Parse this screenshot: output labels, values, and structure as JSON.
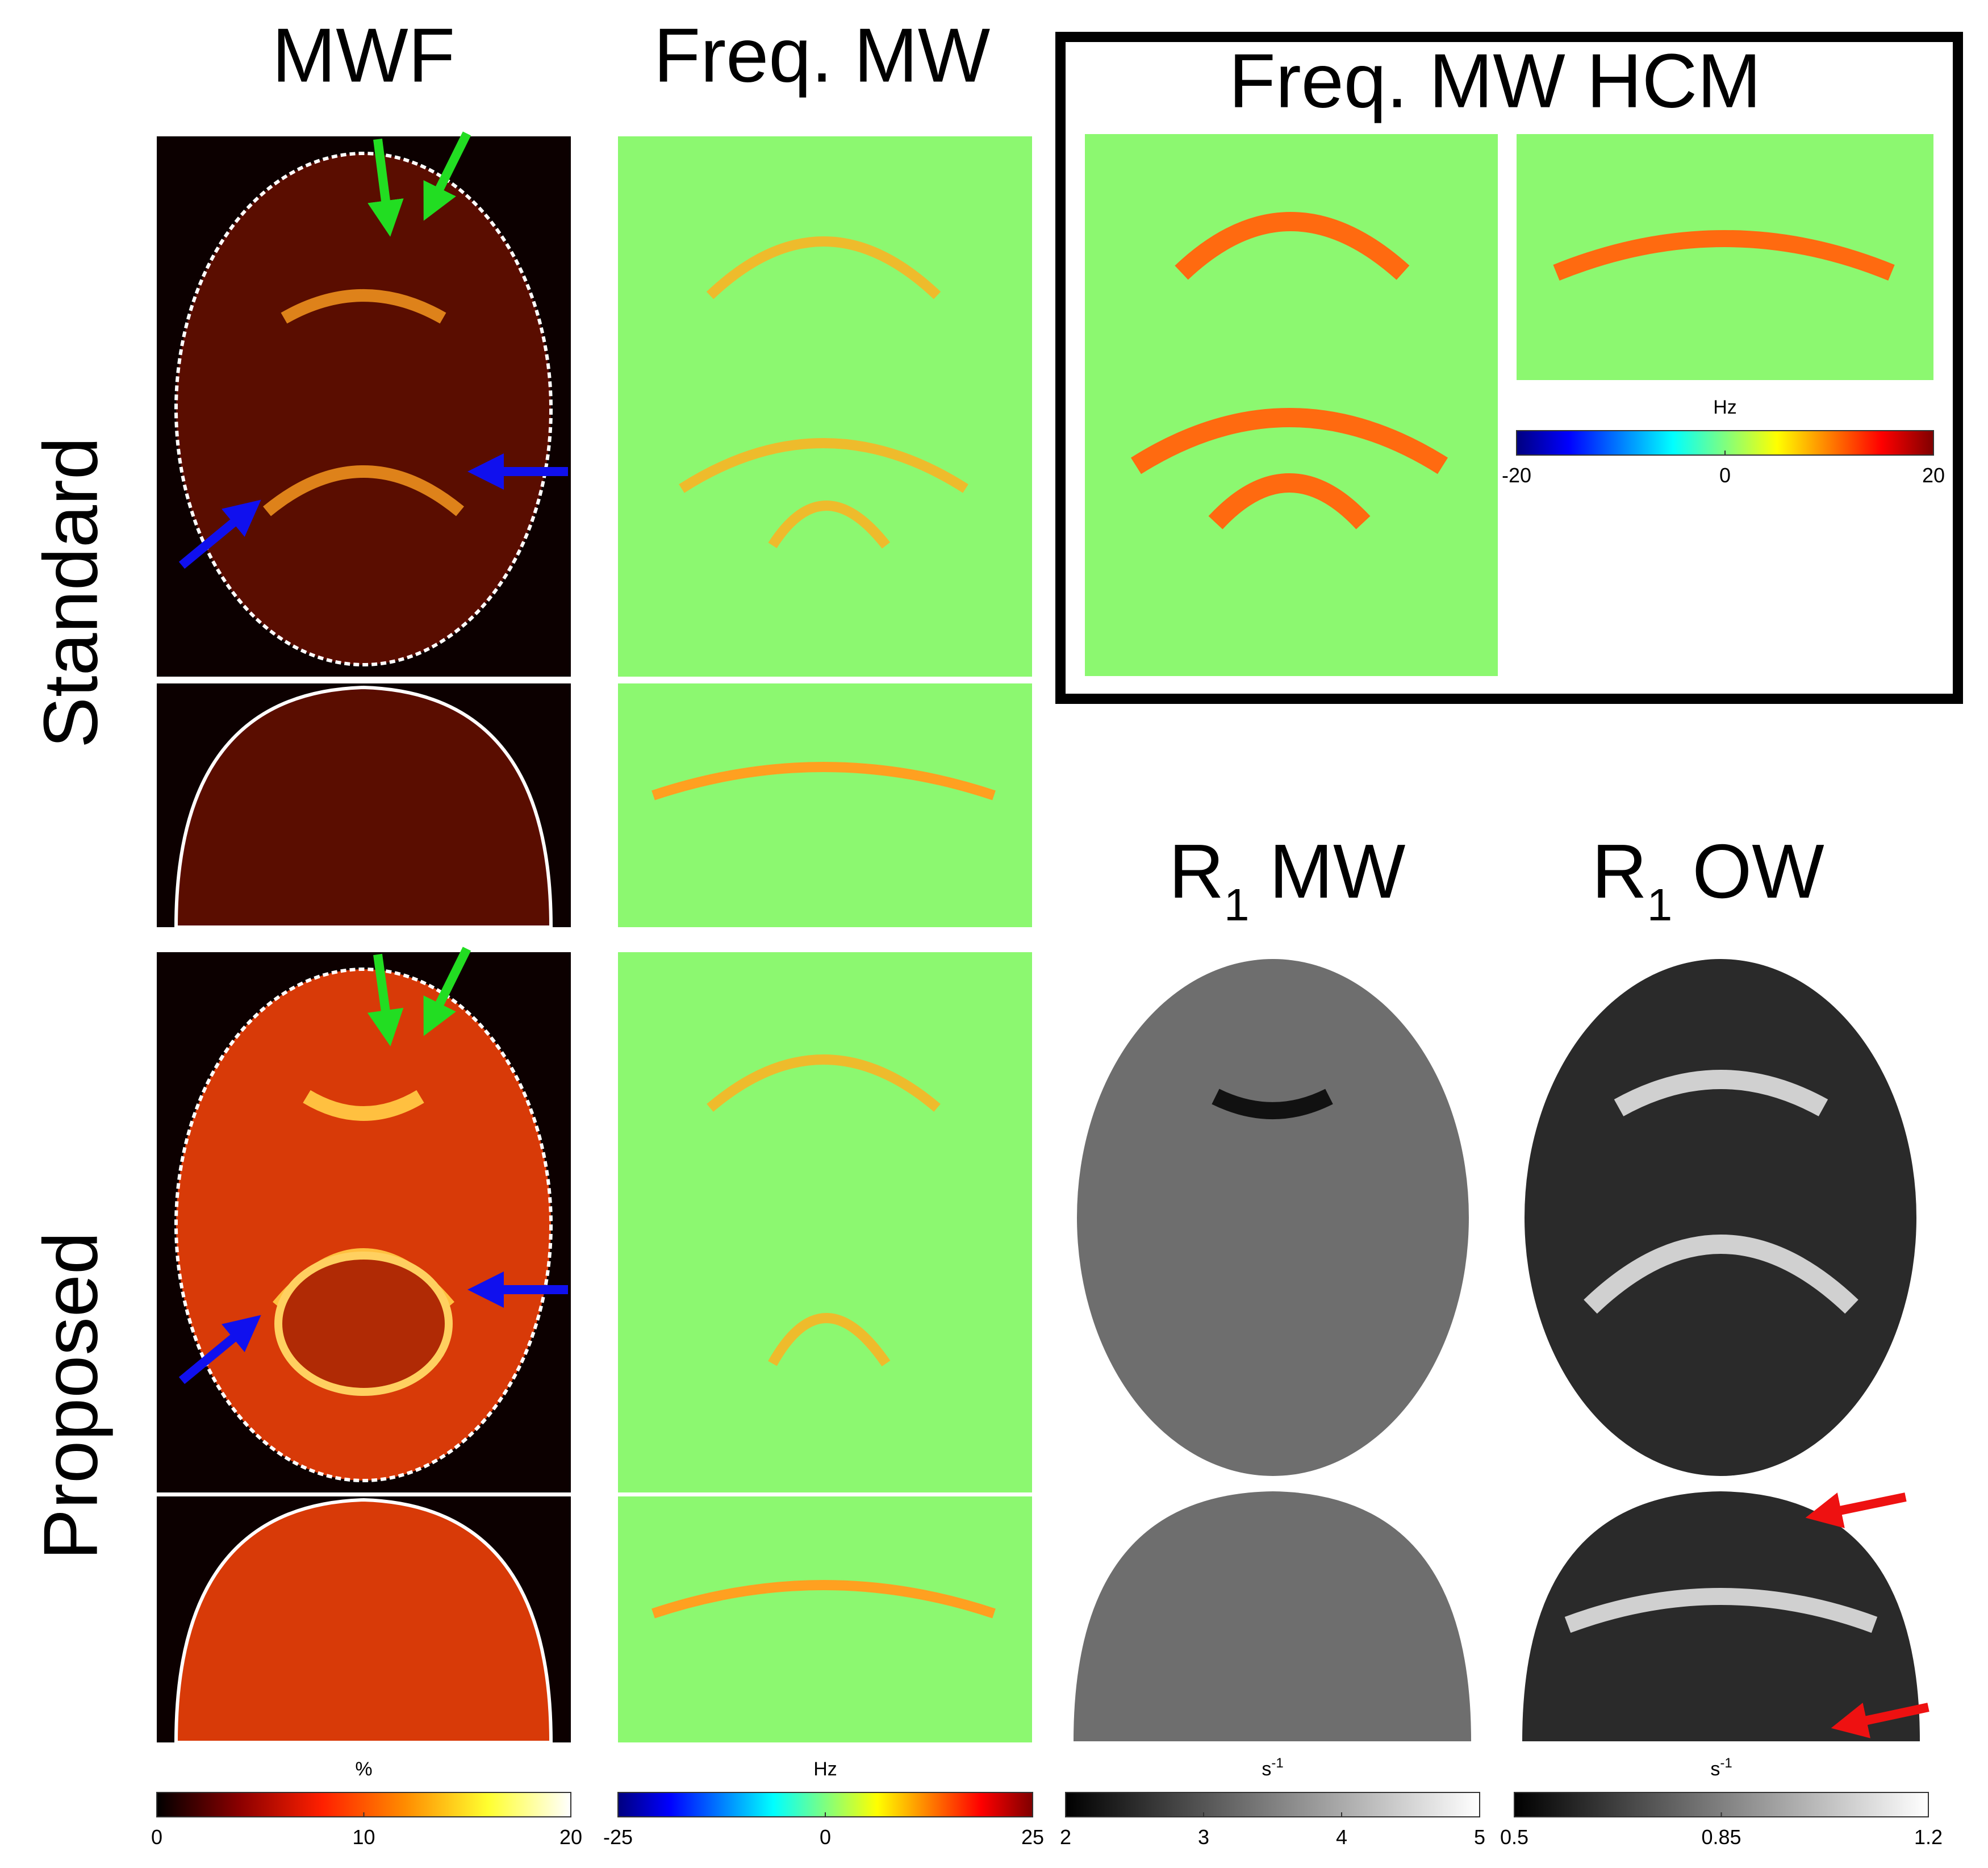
{
  "columns": [
    {
      "title": "MWF"
    },
    {
      "title": "Freq. MW"
    },
    {
      "title": {
        "base": "R",
        "sub": "1",
        "rest": "MW"
      }
    },
    {
      "title": {
        "base": "R",
        "sub": "1",
        "rest": "OW"
      }
    }
  ],
  "row_labels": [
    "Standard",
    "Proposed"
  ],
  "inset": {
    "title": "Freq. MW HCM",
    "colorbar": {
      "unit": "Hz",
      "lim": [
        -20,
        20
      ],
      "ticks": [
        -20,
        0,
        20
      ],
      "colors": [
        "#00007f",
        "#0000ff",
        "#007fff",
        "#00ffff",
        "#7fff7f",
        "#ffff00",
        "#ff7f00",
        "#ff0000",
        "#7f0000"
      ]
    }
  },
  "colorbars": [
    {
      "unit": "%",
      "lim": [
        0,
        20
      ],
      "ticks": [
        0,
        10,
        20
      ],
      "colors": [
        "#000000",
        "#8b0000",
        "#ff2000",
        "#ff8c00",
        "#ffff30",
        "#ffffff"
      ]
    },
    {
      "unit": "Hz",
      "lim": [
        -25,
        25
      ],
      "ticks": [
        -25,
        0,
        25
      ],
      "colors": [
        "#00007f",
        "#0000ff",
        "#007fff",
        "#00ffff",
        "#7fff7f",
        "#ffff00",
        "#ff7f00",
        "#ff0000",
        "#7f0000"
      ]
    },
    {
      "unit": {
        "base": "s",
        "sup": "-1"
      },
      "lim": [
        2,
        5
      ],
      "ticks": [
        2,
        3,
        4,
        5
      ],
      "colors": [
        "#000000",
        "#ffffff"
      ]
    },
    {
      "unit": {
        "base": "s",
        "sup": "-1"
      },
      "lim": [
        0.5,
        1.2
      ],
      "ticks": [
        0.5,
        0.85,
        1.2
      ],
      "colors": [
        "#000000",
        "#ffffff"
      ]
    }
  ]
}
